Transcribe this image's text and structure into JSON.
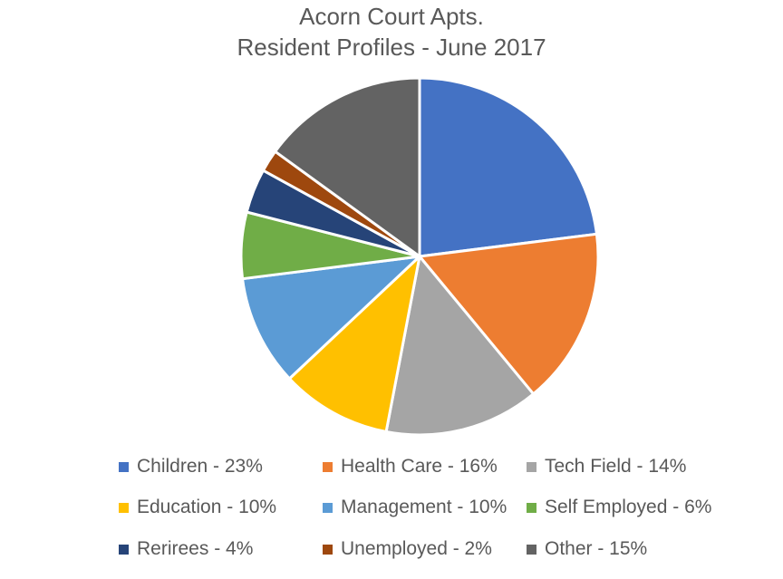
{
  "chart_data": {
    "type": "pie",
    "title": "Acorn Court Apts.",
    "subtitle": "Resident Profiles - June 2017",
    "legend_position": "bottom",
    "slices": [
      {
        "label": "Children - 23%",
        "value": 23,
        "color": "#4472C4"
      },
      {
        "label": "Health Care - 16%",
        "value": 16,
        "color": "#ED7D31"
      },
      {
        "label": "Tech Field - 14%",
        "value": 14,
        "color": "#A5A5A5"
      },
      {
        "label": "Education - 10%",
        "value": 10,
        "color": "#FFC000"
      },
      {
        "label": "Management - 10%",
        "value": 10,
        "color": "#5B9BD5"
      },
      {
        "label": "Self Employed - 6%",
        "value": 6,
        "color": "#70AD47"
      },
      {
        "label": "Rerirees - 4%",
        "value": 4,
        "color": "#264478"
      },
      {
        "label": "Unemployed - 2%",
        "value": 2,
        "color": "#9E480E"
      },
      {
        "label": "Other - 15%",
        "value": 15,
        "color": "#636363"
      }
    ]
  }
}
